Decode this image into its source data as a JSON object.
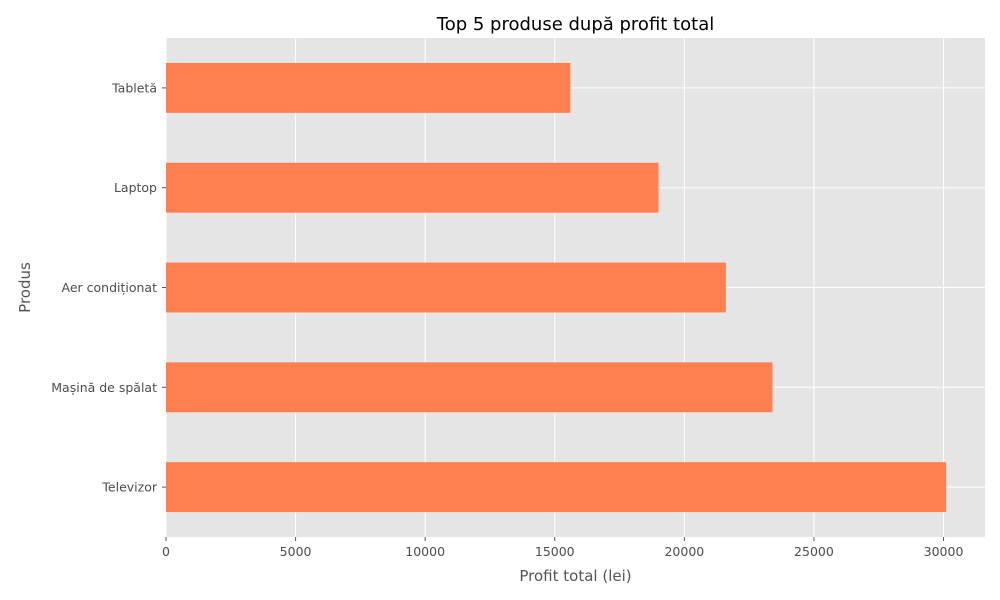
{
  "chart_data": {
    "type": "bar",
    "orientation": "horizontal",
    "title": "Top 5 produse după profit total",
    "xlabel": "Profit total (lei)",
    "ylabel": "Produs",
    "categories": [
      "Televizor",
      "Mașină de spălat",
      "Aer condiționat",
      "Laptop",
      "Tabletă"
    ],
    "values": [
      30100,
      23400,
      21600,
      19000,
      15600
    ],
    "xlim": [
      0,
      31600
    ],
    "xticks": [
      0,
      5000,
      10000,
      15000,
      20000,
      25000,
      30000
    ],
    "grid": true,
    "style": "ggplot",
    "colors": {
      "bar": "#ff7f50",
      "plot_background": "#e5e5e5",
      "grid": "#ffffff"
    }
  }
}
